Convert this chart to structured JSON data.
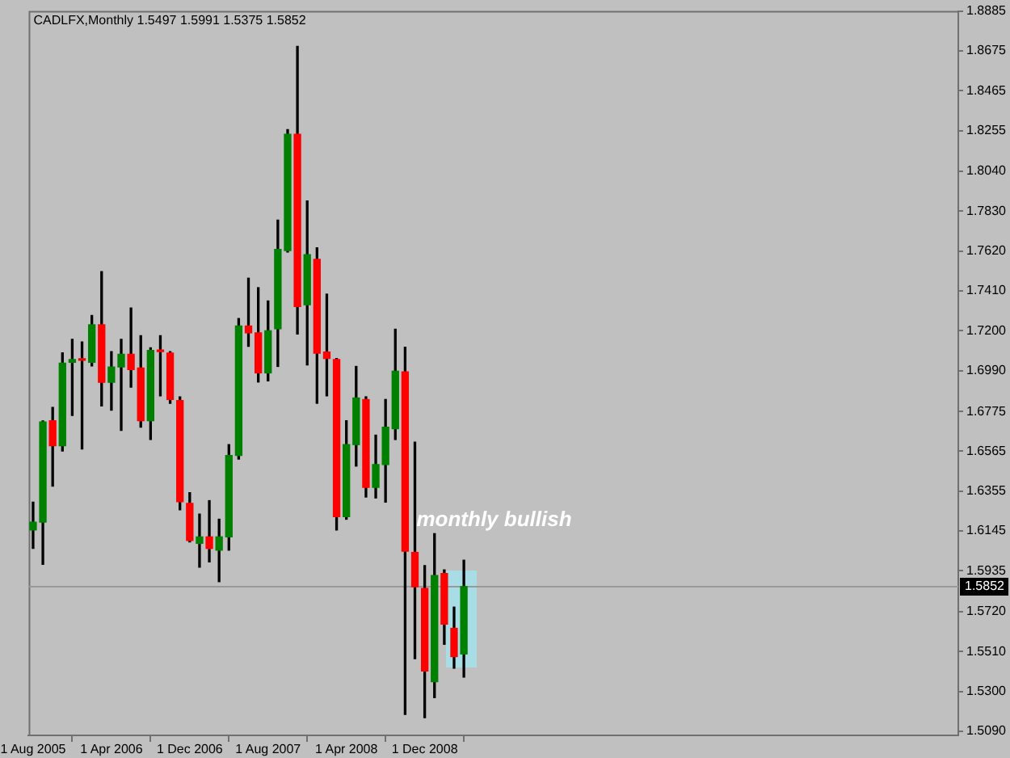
{
  "chart_data": {
    "type": "candlestick",
    "title": "CADLFX,Monthly 1.5497 1.5991 1.5375 1.5852",
    "x": [
      "2005-08",
      "2005-09",
      "2005-10",
      "2005-11",
      "2005-12",
      "2006-01",
      "2006-02",
      "2006-03",
      "2006-04",
      "2006-05",
      "2006-06",
      "2006-07",
      "2006-08",
      "2006-09",
      "2006-10",
      "2006-11",
      "2006-12",
      "2007-01",
      "2007-02",
      "2007-03",
      "2007-04",
      "2007-05",
      "2007-06",
      "2007-07",
      "2007-08",
      "2007-09",
      "2007-10",
      "2007-11",
      "2007-12",
      "2008-01",
      "2008-02",
      "2008-03",
      "2008-04",
      "2008-05",
      "2008-06",
      "2008-07",
      "2008-08",
      "2008-09",
      "2008-10",
      "2008-11",
      "2008-12",
      "2009-01",
      "2009-02",
      "2009-03",
      "2009-04"
    ],
    "ohlc": [
      [
        1.615,
        1.6297,
        1.6053,
        1.6192
      ],
      [
        1.6192,
        1.6725,
        1.5969,
        1.672
      ],
      [
        1.6726,
        1.6796,
        1.6381,
        1.6594
      ],
      [
        1.6594,
        1.7084,
        1.6566,
        1.7029
      ],
      [
        1.7034,
        1.7155,
        1.6754,
        1.7048
      ],
      [
        1.7048,
        1.7141,
        1.6577,
        1.7044
      ],
      [
        1.7034,
        1.7281,
        1.7015,
        1.7231
      ],
      [
        1.7231,
        1.7511,
        1.6804,
        1.6928
      ],
      [
        1.6928,
        1.709,
        1.6781,
        1.7009
      ],
      [
        1.7009,
        1.7155,
        1.6675,
        1.7076
      ],
      [
        1.7076,
        1.732,
        1.6903,
        1.6995
      ],
      [
        1.7004,
        1.7174,
        1.6692,
        1.6726
      ],
      [
        1.6726,
        1.711,
        1.6627,
        1.7096
      ],
      [
        1.7096,
        1.7174,
        1.6857,
        1.709
      ],
      [
        1.7082,
        1.709,
        1.6818,
        1.6838
      ],
      [
        1.6832,
        1.6852,
        1.6257,
        1.6299
      ],
      [
        1.6291,
        1.6347,
        1.6087,
        1.6095
      ],
      [
        1.608,
        1.6234,
        1.5954,
        1.6114
      ],
      [
        1.6114,
        1.6305,
        1.5982,
        1.6053
      ],
      [
        1.6044,
        1.6207,
        1.5878,
        1.6114
      ],
      [
        1.6114,
        1.66,
        1.6044,
        1.6543
      ],
      [
        1.6543,
        1.7264,
        1.6524,
        1.7225
      ],
      [
        1.7225,
        1.7477,
        1.7118,
        1.7189
      ],
      [
        1.7189,
        1.7427,
        1.693,
        1.6978
      ],
      [
        1.6978,
        1.7357,
        1.6936,
        1.72
      ],
      [
        1.7211,
        1.7783,
        1.7012,
        1.7629
      ],
      [
        1.7623,
        1.826,
        1.7615,
        1.8235
      ],
      [
        1.8235,
        1.8698,
        1.7183,
        1.7328
      ],
      [
        1.7337,
        1.7884,
        1.702,
        1.7601
      ],
      [
        1.7576,
        1.7637,
        1.6818,
        1.7082
      ],
      [
        1.7088,
        1.7393,
        1.6857,
        1.7054
      ],
      [
        1.7048,
        1.7054,
        1.615,
        1.6221
      ],
      [
        1.6221,
        1.6726,
        1.6207,
        1.66
      ],
      [
        1.66,
        1.7012,
        1.6487,
        1.6846
      ],
      [
        1.6838,
        1.6852,
        1.6324,
        1.6375
      ],
      [
        1.6375,
        1.665,
        1.6319,
        1.6495
      ],
      [
        1.6495,
        1.6838,
        1.6297,
        1.6692
      ],
      [
        1.6684,
        1.7208,
        1.6627,
        1.6987
      ],
      [
        1.6983,
        1.7113,
        1.5178,
        1.6038
      ],
      [
        1.6032,
        1.6613,
        1.5472,
        1.5851
      ],
      [
        1.5842,
        1.5963,
        1.5161,
        1.5407
      ],
      [
        1.5351,
        1.6131,
        1.5267,
        1.591
      ],
      [
        1.5921,
        1.594,
        1.5548,
        1.5654
      ],
      [
        1.5632,
        1.5744,
        1.5422,
        1.5483
      ],
      [
        1.5497,
        1.5991,
        1.5375,
        1.5852
      ]
    ],
    "colors": [
      "#008000",
      "#008000",
      "#ff0000",
      "#008000",
      "#008000",
      "#ff0000",
      "#008000",
      "#ff0000",
      "#008000",
      "#008000",
      "#ff0000",
      "#ff0000",
      "#008000",
      "#ff0000",
      "#ff0000",
      "#ff0000",
      "#ff0000",
      "#008000",
      "#ff0000",
      "#008000",
      "#008000",
      "#008000",
      "#ff0000",
      "#ff0000",
      "#008000",
      "#008000",
      "#008000",
      "#ff0000",
      "#008000",
      "#ff0000",
      "#ff0000",
      "#ff0000",
      "#008000",
      "#008000",
      "#ff0000",
      "#008000",
      "#008000",
      "#008000",
      "#ff0000",
      "#ff0000",
      "#ff0000",
      "#008000",
      "#ff0000",
      "#ff0000",
      "#008000"
    ],
    "xlim": [
      "2005-07-18",
      "2013-06-16"
    ],
    "xticks": [
      {
        "value": "2005-08-01",
        "label": "1 Aug 2005"
      },
      {
        "value": "2006-04-01",
        "label": "1 Apr 2006"
      },
      {
        "value": "2006-12-01",
        "label": "1 Dec 2006"
      },
      {
        "value": "2007-08-01",
        "label": "1 Aug 2007"
      },
      {
        "value": "2008-04-01",
        "label": "1 Apr 2008"
      },
      {
        "value": "2008-12-01",
        "label": "1 Dec 2008"
      }
    ],
    "ylim": [
      1.5068,
      1.8885
    ],
    "yticks": [
      {
        "value": 1.509,
        "label": "1.5090"
      },
      {
        "value": 1.53,
        "label": "1.5300"
      },
      {
        "value": 1.551,
        "label": "1.5510"
      },
      {
        "value": 1.572,
        "label": "1.5720"
      },
      1.5935,
      1.6145,
      1.6355,
      1.6565,
      1.6775,
      {
        "value": 1.699,
        "label": "1.6990"
      },
      {
        "value": 1.72,
        "label": "1.7200"
      },
      {
        "value": 1.741,
        "label": "1.7410"
      },
      {
        "value": 1.762,
        "label": "1.7620"
      },
      {
        "value": 1.783,
        "label": "1.7830"
      },
      {
        "value": 1.804,
        "label": "1.8040"
      },
      1.8255,
      1.8465,
      1.8675,
      1.8885
    ],
    "ref_lines": [
      {
        "axis": "y",
        "value": 1.5852,
        "label": "1.5852",
        "color": "#999999"
      }
    ],
    "annotations": [
      "monthly bullish"
    ]
  }
}
